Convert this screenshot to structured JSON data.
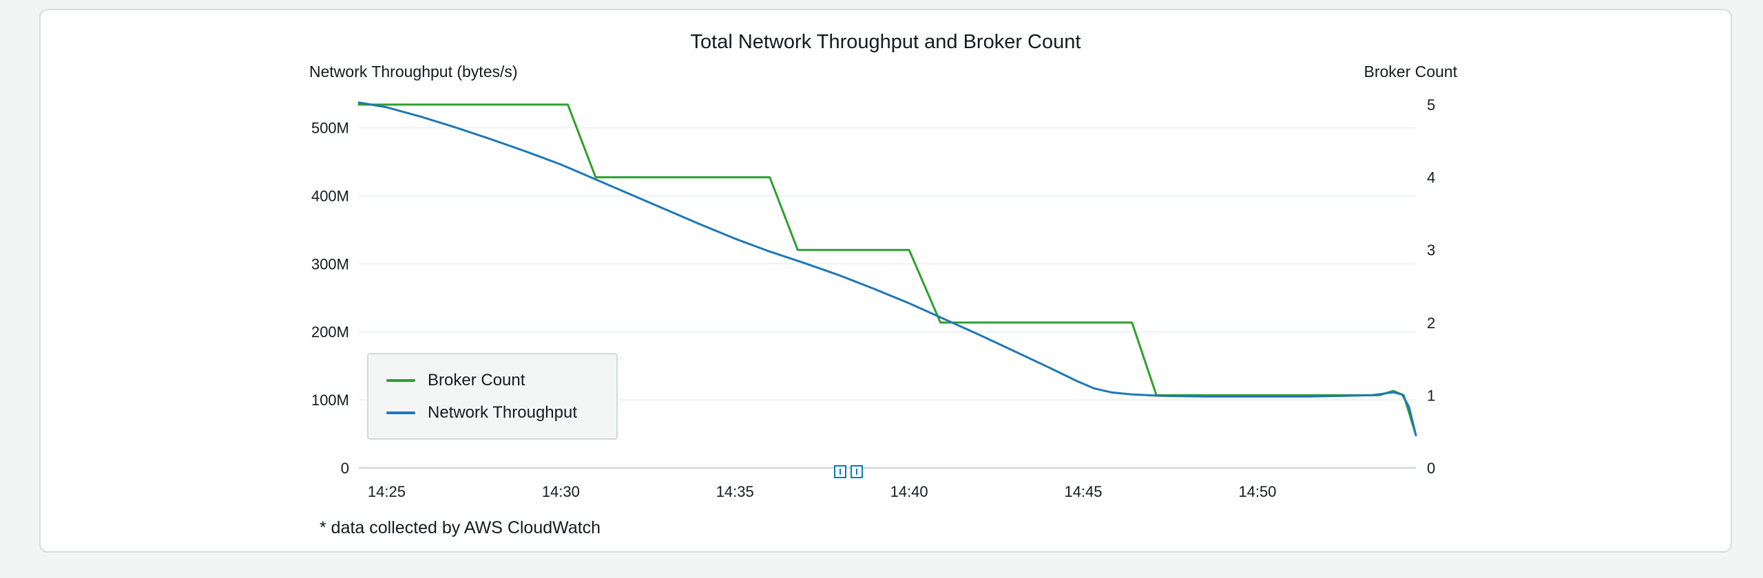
{
  "card": {
    "footnote": "* data collected by AWS CloudWatch"
  },
  "colors": {
    "broker_count_line": "#2ca02c",
    "network_throughput_line": "#1f77b4",
    "scrubber_accent": "#007dbc",
    "grid_line": "#eaeeee",
    "axis_line": "#d0d7d7",
    "text": "#16191f",
    "card_background": "#ffffff",
    "card_border": "#d8dcdc",
    "page_background": "#f3f4f4",
    "legend_background": "#f4f6f6",
    "legend_border": "#d3d9d9"
  },
  "chart_data": {
    "type": "line",
    "title": "Total Network Throughput and Broker Count",
    "legend_position": "inside bottom-left",
    "grid": "horizontal only",
    "x_unit_note": "point x values are minutes after 14:00",
    "x_axis": {
      "ticks": [
        "14:25",
        "14:30",
        "14:35",
        "14:40",
        "14:45",
        "14:50"
      ],
      "tick_values": [
        25,
        30,
        35,
        40,
        45,
        50
      ],
      "range": [
        24.2,
        54.55
      ]
    },
    "left_axis": {
      "label": "Network Throughput (bytes/s)",
      "ticks": [
        "0",
        "100M",
        "200M",
        "300M",
        "400M",
        "500M"
      ],
      "tick_values": [
        0,
        100,
        200,
        300,
        400,
        500
      ],
      "units": "millions of bytes per second",
      "range": [
        0,
        540
      ]
    },
    "right_axis": {
      "label": "Broker Count",
      "ticks": [
        "0",
        "1",
        "2",
        "3",
        "4",
        "5"
      ],
      "tick_values": [
        0,
        1,
        2,
        3,
        4,
        5
      ],
      "range": [
        0,
        5.3
      ]
    },
    "series": [
      {
        "name": "Broker Count",
        "axis": "right",
        "color": "#2ca02c",
        "points": [
          [
            24.2,
            5
          ],
          [
            30.2,
            5
          ],
          [
            31.0,
            4
          ],
          [
            36.0,
            4
          ],
          [
            36.8,
            3
          ],
          [
            40.0,
            3
          ],
          [
            40.9,
            2
          ],
          [
            46.4,
            2
          ],
          [
            47.1,
            1
          ],
          [
            53.5,
            1
          ],
          [
            53.9,
            1.06
          ],
          [
            54.2,
            1.0
          ],
          [
            54.55,
            0.45
          ]
        ]
      },
      {
        "name": "Network Throughput",
        "axis": "left",
        "color": "#1f77b4",
        "points": [
          [
            24.2,
            537
          ],
          [
            25,
            530
          ],
          [
            26,
            516
          ],
          [
            27,
            500
          ],
          [
            28,
            483
          ],
          [
            29,
            465
          ],
          [
            30,
            446
          ],
          [
            31,
            424
          ],
          [
            32,
            402
          ],
          [
            33,
            380
          ],
          [
            34,
            358
          ],
          [
            35,
            337
          ],
          [
            36,
            318
          ],
          [
            37,
            301
          ],
          [
            38,
            283
          ],
          [
            39,
            263
          ],
          [
            40,
            242
          ],
          [
            41,
            219
          ],
          [
            42,
            196
          ],
          [
            43,
            172
          ],
          [
            44,
            148
          ],
          [
            44.8,
            128
          ],
          [
            45.3,
            117
          ],
          [
            45.8,
            111
          ],
          [
            46.4,
            108
          ],
          [
            47.2,
            106
          ],
          [
            48.5,
            105
          ],
          [
            50,
            105
          ],
          [
            51.5,
            105
          ],
          [
            52.5,
            106
          ],
          [
            53.3,
            107
          ],
          [
            53.9,
            111
          ],
          [
            54.15,
            108
          ],
          [
            54.35,
            90
          ],
          [
            54.55,
            48
          ]
        ]
      }
    ]
  }
}
